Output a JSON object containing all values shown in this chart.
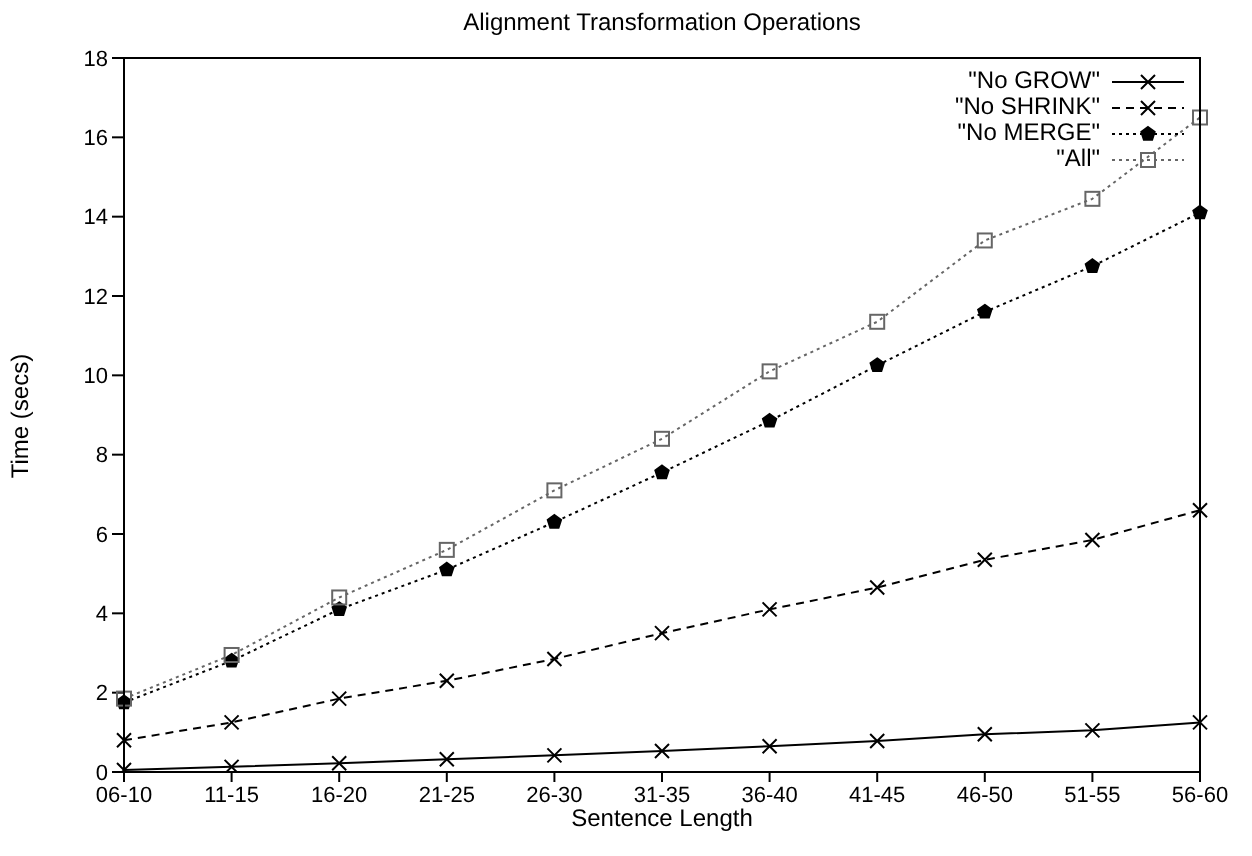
{
  "chart_data": {
    "type": "line",
    "title": "Alignment Transformation Operations",
    "xlabel": "Sentence Length",
    "ylabel": "Time (secs)",
    "categories": [
      "06-10",
      "11-15",
      "16-20",
      "21-25",
      "26-30",
      "31-35",
      "36-40",
      "41-45",
      "46-50",
      "51-55",
      "56-60"
    ],
    "ylim": [
      0,
      18
    ],
    "yticks": [
      0,
      2,
      4,
      6,
      8,
      10,
      12,
      14,
      16,
      18
    ],
    "grid": false,
    "legend": "top right",
    "series": [
      {
        "name": "\"No GROW\"",
        "color": "#000000",
        "marker": "cross",
        "line_style": "solid",
        "values": [
          0.05,
          0.13,
          0.22,
          0.32,
          0.42,
          0.53,
          0.65,
          0.78,
          0.95,
          1.05,
          1.25
        ]
      },
      {
        "name": "\"No SHRINK\"",
        "color": "#000000",
        "marker": "cross",
        "line_style": "dashed",
        "values": [
          0.8,
          1.25,
          1.85,
          2.3,
          2.85,
          3.5,
          4.1,
          4.65,
          5.35,
          5.85,
          6.6
        ]
      },
      {
        "name": "\"No MERGE\"",
        "color": "#000000",
        "marker": "star",
        "line_style": "dotted",
        "values": [
          1.75,
          2.8,
          4.1,
          5.1,
          6.3,
          7.55,
          8.85,
          10.25,
          11.6,
          12.75,
          14.1
        ]
      },
      {
        "name": "\"All\"",
        "color": "#666666",
        "marker": "square",
        "line_style": "dotted",
        "values": [
          1.85,
          2.95,
          4.4,
          5.6,
          7.1,
          8.4,
          10.1,
          11.35,
          13.4,
          14.45,
          16.5
        ]
      }
    ]
  }
}
